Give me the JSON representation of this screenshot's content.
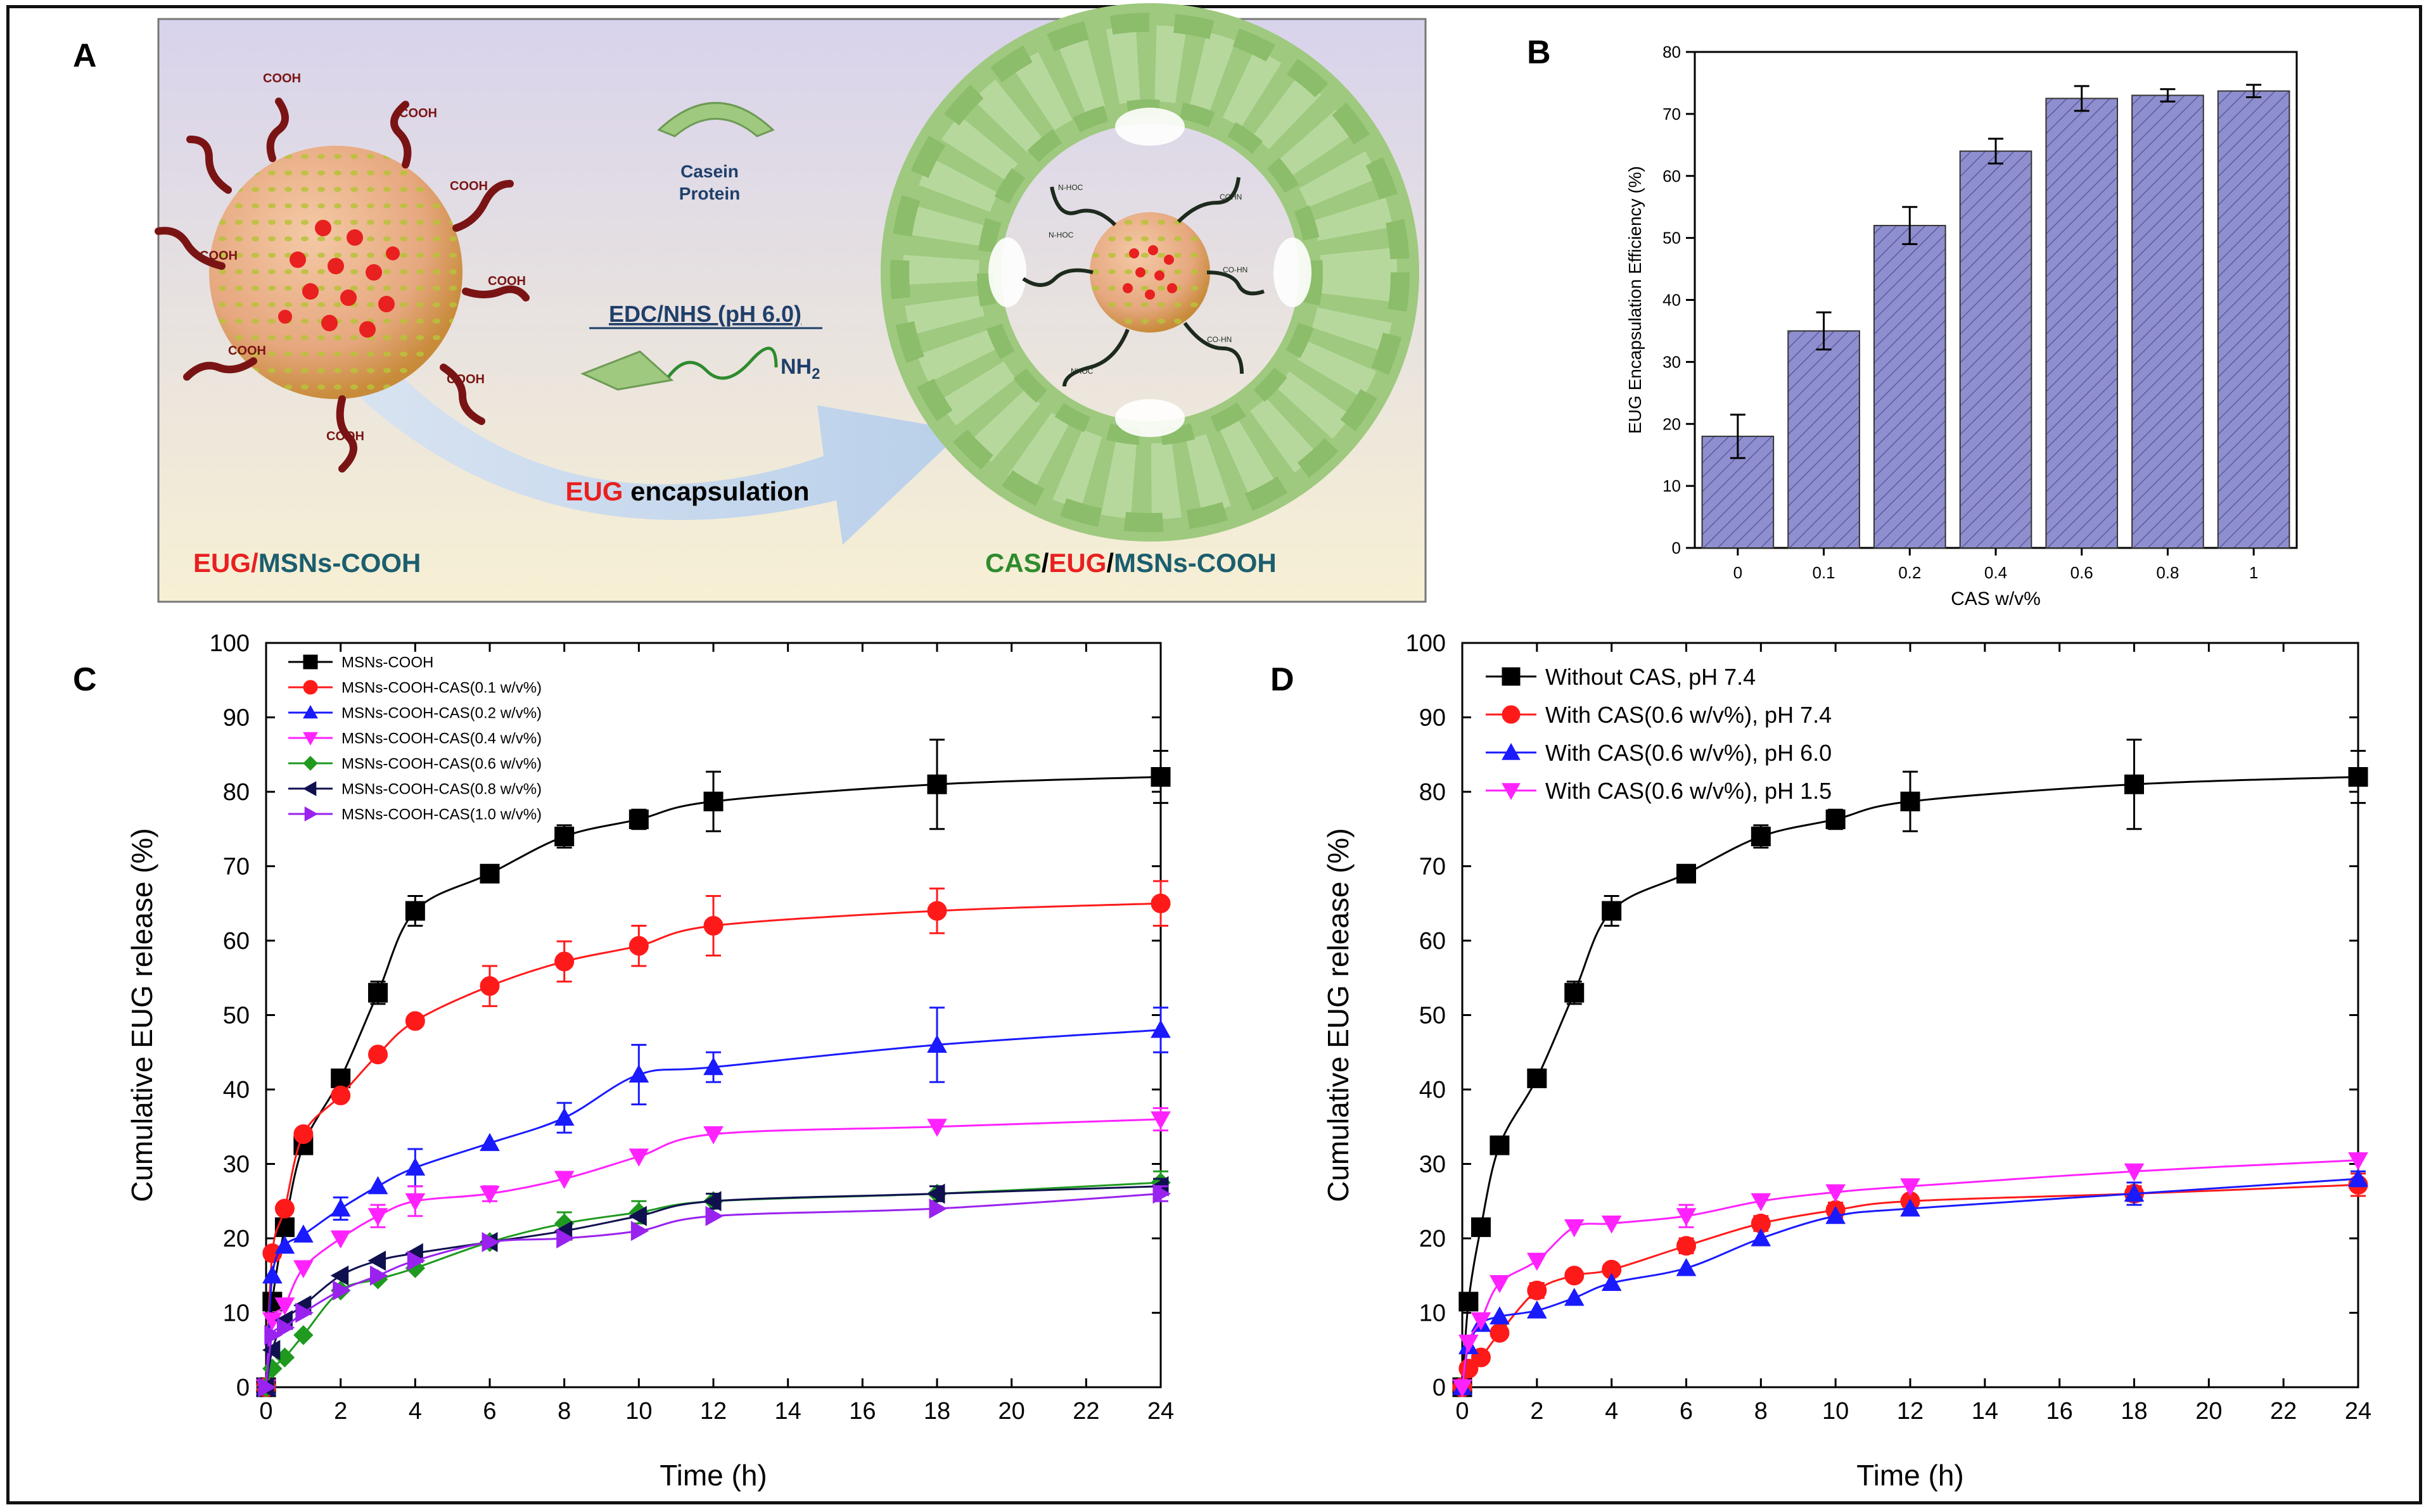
{
  "panelA": {
    "label": "A",
    "cooh": "COOH",
    "casein_line1": "Casein",
    "casein_line2": "Protein",
    "edc": "EDC/NHS (pH 6.0)",
    "nh2": "NH",
    "nh2_sub": "2",
    "enc_eug": "EUG",
    "enc_rest": " encapsulation",
    "left_eug": "EUG",
    "left_slash": "/",
    "left_msn": "MSNs-COOH",
    "right_cas": "CAS",
    "right_slash1": "/",
    "right_eug": "EUG",
    "right_slash2": "/",
    "right_msn": "MSNs-COOH",
    "linker_labels": [
      "N-HOC",
      "N-HOC",
      "COHN",
      "CO-HN",
      "NHOC",
      "CO-HN"
    ]
  },
  "colors": {
    "bar_fill": "#8f8fcf",
    "black": "#000000",
    "red": "#ff1a1a",
    "blue": "#1a1aff",
    "magenta": "#ff22ff",
    "green": "#1f9a1f",
    "navy": "#101050",
    "violet": "#9a22ee",
    "protein": "#9ec97f",
    "arrow": "#c4d8ee"
  },
  "chart_data": [
    {
      "id": "B",
      "panel_label": "B",
      "type": "bar",
      "categories": [
        "0",
        "0.1",
        "0.2",
        "0.4",
        "0.6",
        "0.8",
        "1"
      ],
      "values": [
        18,
        35,
        52,
        64,
        72.5,
        73,
        73.7
      ],
      "errors": [
        3.5,
        3,
        3,
        2,
        2,
        1,
        1
      ],
      "xlabel": "CAS w/v%",
      "ylabel": "EUG Encapsulation Efficiency (%)",
      "ylim": [
        0,
        80
      ],
      "yticks": [
        0,
        10,
        20,
        30,
        40,
        50,
        60,
        70,
        80
      ]
    },
    {
      "id": "C",
      "panel_label": "C",
      "type": "line",
      "xlabel": "Time (h)",
      "ylabel": "Cumulative EUG release (%)",
      "xlim": [
        0,
        24
      ],
      "ylim": [
        0,
        100
      ],
      "xticks": [
        0,
        2,
        4,
        6,
        8,
        10,
        12,
        14,
        16,
        18,
        20,
        22,
        24
      ],
      "yticks": [
        0,
        10,
        20,
        30,
        40,
        50,
        60,
        70,
        80,
        90,
        100
      ],
      "legend_position": "top-left",
      "x": [
        0,
        0.167,
        0.5,
        1,
        2,
        3,
        4,
        6,
        8,
        10,
        12,
        18,
        24
      ],
      "series": [
        {
          "name": "MSNs-COOH",
          "color": "#000000",
          "marker": "square",
          "values": [
            0,
            11.5,
            21.5,
            32.5,
            41.5,
            53,
            64,
            69,
            74,
            76.3,
            78.7,
            81,
            82
          ],
          "errors": [
            0,
            0,
            0,
            0,
            1,
            1.5,
            2,
            0,
            1.5,
            1.3,
            4,
            6,
            3.5
          ]
        },
        {
          "name": "MSNs-COOH-CAS(0.1 w/v%)",
          "color": "#ff1a1a",
          "marker": "circle",
          "values": [
            0,
            18,
            24,
            34,
            39.2,
            44.7,
            49.2,
            53.9,
            57.2,
            59.3,
            62,
            64,
            65
          ],
          "errors": [
            0,
            0,
            0,
            0,
            0,
            0,
            0,
            2.7,
            2.7,
            2.7,
            4,
            3,
            3
          ]
        },
        {
          "name": "MSNs-COOH-CAS(0.2 w/v%)",
          "color": "#1a1aff",
          "marker": "triangle-up",
          "values": [
            0,
            15,
            19,
            20.5,
            24,
            27,
            29.5,
            32.8,
            36.2,
            42,
            43,
            46,
            48
          ],
          "errors": [
            0,
            0,
            0,
            0,
            1.5,
            0,
            2.5,
            0,
            2,
            4,
            2,
            5,
            3
          ]
        },
        {
          "name": "MSNs-COOH-CAS(0.4 w/v%)",
          "color": "#ff22ff",
          "marker": "triangle-down",
          "values": [
            0,
            9,
            11,
            16,
            20,
            23,
            25,
            26,
            28,
            31,
            34,
            35,
            36
          ],
          "errors": [
            0,
            0,
            0,
            0,
            0,
            1.5,
            2,
            1,
            0,
            0,
            0,
            0,
            1.5
          ]
        },
        {
          "name": "MSNs-COOH-CAS(0.6 w/v%)",
          "color": "#1f9a1f",
          "marker": "diamond",
          "values": [
            0,
            2.5,
            4,
            7,
            13,
            14.5,
            16,
            19.5,
            22,
            23.5,
            25,
            26,
            27.5
          ],
          "errors": [
            0,
            0,
            0,
            0,
            0,
            0,
            0,
            0,
            1.5,
            1.5,
            0,
            0,
            1.5
          ]
        },
        {
          "name": "MSNs-COOH-CAS(0.8 w/v%)",
          "color": "#101050",
          "marker": "triangle-left",
          "values": [
            0,
            5,
            9,
            11,
            15,
            17,
            18,
            19.5,
            21,
            23,
            25,
            26,
            27
          ],
          "errors": [
            0,
            0,
            0,
            0,
            0,
            0,
            0,
            0,
            0,
            0,
            1,
            1,
            1
          ]
        },
        {
          "name": "MSNs-COOH-CAS(1.0 w/v%)",
          "color": "#9a22ee",
          "marker": "triangle-right",
          "values": [
            0,
            7,
            8,
            10,
            13,
            15,
            17,
            19.5,
            20,
            21,
            23,
            24,
            26
          ],
          "errors": [
            0,
            0,
            0,
            0,
            0,
            0,
            0,
            0,
            0,
            0,
            0,
            0,
            1
          ]
        }
      ]
    },
    {
      "id": "D",
      "panel_label": "D",
      "type": "line",
      "xlabel": "Time (h)",
      "ylabel": "Cumulative EUG release (%)",
      "xlim": [
        0,
        24
      ],
      "ylim": [
        0,
        100
      ],
      "xticks": [
        0,
        2,
        4,
        6,
        8,
        10,
        12,
        14,
        16,
        18,
        20,
        22,
        24
      ],
      "yticks": [
        0,
        10,
        20,
        30,
        40,
        50,
        60,
        70,
        80,
        90,
        100
      ],
      "legend_position": "top-left",
      "x": [
        0,
        0.167,
        0.5,
        1,
        2,
        3,
        4,
        6,
        8,
        10,
        12,
        18,
        24
      ],
      "series": [
        {
          "name": "Without CAS, pH 7.4",
          "color": "#000000",
          "marker": "square",
          "values": [
            0,
            11.5,
            21.5,
            32.5,
            41.5,
            53,
            64,
            69,
            74,
            76.3,
            78.7,
            81,
            82
          ],
          "errors": [
            0,
            0,
            0,
            0,
            1,
            1.5,
            2,
            0,
            1.5,
            1.3,
            4,
            6,
            3.5
          ]
        },
        {
          "name": "With CAS(0.6 w/v%), pH 7.4",
          "color": "#ff1a1a",
          "marker": "circle",
          "values": [
            0,
            2.5,
            4,
            7.3,
            13,
            15,
            15.8,
            19,
            22,
            23.8,
            25,
            26,
            27.2
          ],
          "errors": [
            0,
            0,
            0,
            0,
            1,
            0,
            0,
            1,
            1,
            1,
            0,
            1,
            1.5
          ]
        },
        {
          "name": "With CAS(0.6 w/v%), pH 6.0",
          "color": "#1a1aff",
          "marker": "triangle-up",
          "values": [
            0,
            5.5,
            8.5,
            9.5,
            10.3,
            12,
            14,
            16,
            20,
            23,
            24,
            26,
            28
          ],
          "errors": [
            0,
            0,
            0,
            0,
            0,
            0,
            0,
            0,
            0,
            0,
            0,
            1.5,
            1
          ]
        },
        {
          "name": "With CAS(0.6 w/v%), pH 1.5",
          "color": "#ff22ff",
          "marker": "triangle-down",
          "values": [
            0,
            6,
            9,
            14,
            17,
            21.5,
            22,
            23,
            25,
            26.2,
            27,
            29,
            30.5
          ],
          "errors": [
            0,
            0,
            0,
            0,
            0,
            0,
            0,
            1.5,
            0,
            0,
            0,
            0,
            0
          ]
        }
      ]
    }
  ]
}
